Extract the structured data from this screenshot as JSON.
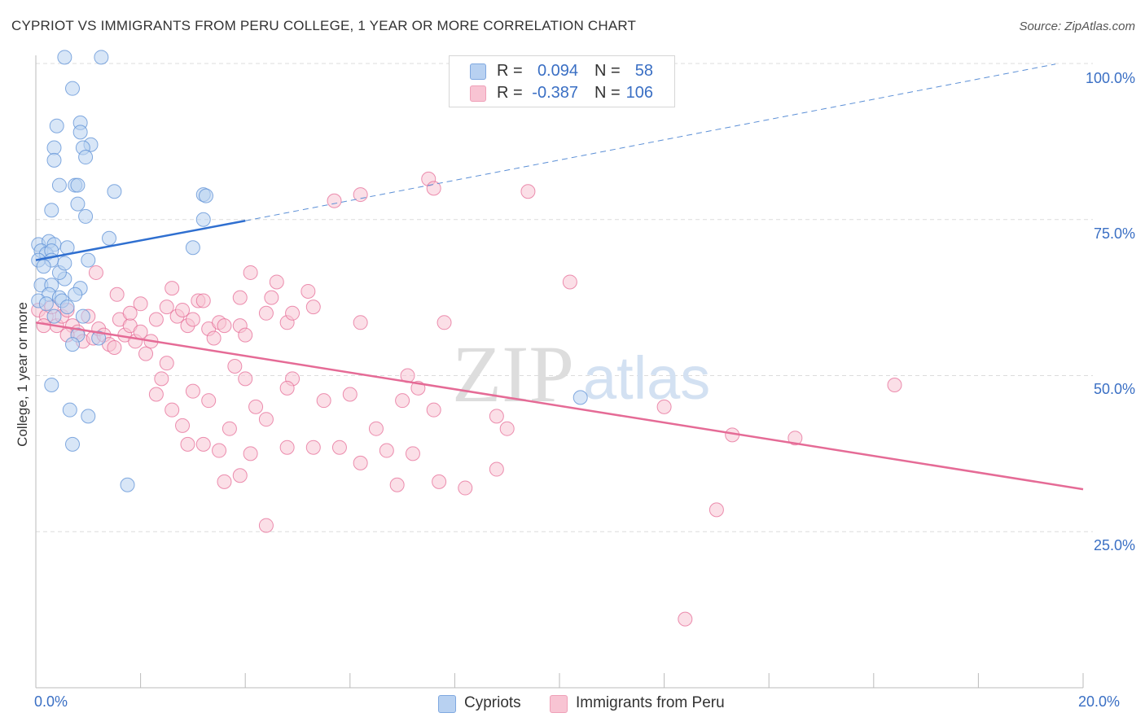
{
  "header": {
    "title": "CYPRIOT VS IMMIGRANTS FROM PERU COLLEGE, 1 YEAR OR MORE CORRELATION CHART",
    "source": "Source: ZipAtlas.com"
  },
  "watermark": {
    "zip": "ZIP",
    "atlas": "atlas"
  },
  "legend": {
    "rows": [
      {
        "swatch_fill": "#b8d1f1",
        "swatch_stroke": "#7fa8e0",
        "r_label": "R =",
        "r_value": "0.094",
        "n_label": "N =",
        "n_value": "58"
      },
      {
        "swatch_fill": "#f8c4d3",
        "swatch_stroke": "#efa0b8",
        "r_label": "R =",
        "r_value": "-0.387",
        "n_label": "N =",
        "n_value": "106"
      }
    ]
  },
  "bottom_legend": {
    "items": [
      {
        "label": "Cypriots",
        "fill": "#b8d1f1",
        "stroke": "#7fa8e0"
      },
      {
        "label": "Immigrants from Peru",
        "fill": "#f8c4d3",
        "stroke": "#efa0b8"
      }
    ]
  },
  "axes": {
    "ylabel": "College, 1 year or more",
    "y_ticks": [
      "100.0%",
      "75.0%",
      "50.0%",
      "25.0%"
    ],
    "x_ticks": [
      "0.0%",
      "20.0%"
    ]
  },
  "chart_data": {
    "type": "scatter",
    "title": "CYPRIOT VS IMMIGRANTS FROM PERU COLLEGE, 1 YEAR OR MORE CORRELATION CHART",
    "xlabel": "",
    "ylabel": "College, 1 year or more",
    "xlim": [
      0,
      20
    ],
    "ylim": [
      0,
      100
    ],
    "y_ticks": [
      25,
      50,
      75,
      100
    ],
    "x_ticks": [
      0,
      20
    ],
    "grid": "horizontal dashed",
    "legend_placement": "top-center",
    "series": [
      {
        "name": "Cypriots",
        "color": "#5b8fd6",
        "fill": "#b8d1f1",
        "R": 0.094,
        "N": 58,
        "trend": {
          "x": [
            0,
            4.0
          ],
          "y": [
            68.5,
            74.8
          ],
          "extended_to": [
            20,
            99.9
          ]
        },
        "points": [
          [
            0.55,
            101
          ],
          [
            1.25,
            101
          ],
          [
            0.7,
            96
          ],
          [
            0.85,
            90.5
          ],
          [
            0.85,
            89
          ],
          [
            0.4,
            90
          ],
          [
            0.35,
            86.5
          ],
          [
            0.35,
            84.5
          ],
          [
            1.05,
            87
          ],
          [
            0.9,
            86.5
          ],
          [
            0.95,
            85
          ],
          [
            0.45,
            80.5
          ],
          [
            0.75,
            80.5
          ],
          [
            0.8,
            80.5
          ],
          [
            1.5,
            79.5
          ],
          [
            3.2,
            79
          ],
          [
            3.25,
            78.8
          ],
          [
            0.3,
            76.5
          ],
          [
            0.8,
            77.5
          ],
          [
            0.95,
            75.5
          ],
          [
            3.2,
            75
          ],
          [
            1.4,
            72
          ],
          [
            0.05,
            71
          ],
          [
            0.25,
            71.5
          ],
          [
            0.35,
            71
          ],
          [
            0.6,
            70.5
          ],
          [
            0.1,
            70
          ],
          [
            0.2,
            69.5
          ],
          [
            0.3,
            70
          ],
          [
            0.05,
            68.5
          ],
          [
            0.3,
            68.5
          ],
          [
            3.0,
            70.5
          ],
          [
            1.0,
            68.5
          ],
          [
            0.1,
            64.5
          ],
          [
            0.3,
            64.5
          ],
          [
            0.55,
            65.5
          ],
          [
            0.85,
            64
          ],
          [
            0.25,
            63
          ],
          [
            0.75,
            63
          ],
          [
            0.45,
            62.5
          ],
          [
            0.5,
            62
          ],
          [
            0.05,
            62
          ],
          [
            0.8,
            56.5
          ],
          [
            1.2,
            56
          ],
          [
            0.7,
            55
          ],
          [
            0.3,
            48.5
          ],
          [
            0.65,
            44.5
          ],
          [
            1.0,
            43.5
          ],
          [
            0.7,
            39
          ],
          [
            1.75,
            32.5
          ],
          [
            10.4,
            46.5
          ],
          [
            0.2,
            61.5
          ],
          [
            0.6,
            61
          ],
          [
            0.15,
            67.5
          ],
          [
            0.45,
            66.5
          ],
          [
            0.9,
            59.5
          ],
          [
            0.35,
            59.5
          ],
          [
            0.55,
            68
          ]
        ]
      },
      {
        "name": "Immigrants from Peru",
        "color": "#e56b96",
        "fill": "#f8c4d3",
        "R": -0.387,
        "N": 106,
        "trend": {
          "x": [
            0,
            20
          ],
          "y": [
            58.5,
            31.8
          ]
        },
        "points": [
          [
            0.05,
            60.5
          ],
          [
            0.2,
            59.5
          ],
          [
            0.3,
            61
          ],
          [
            0.4,
            58
          ],
          [
            0.5,
            59.5
          ],
          [
            0.6,
            60.5
          ],
          [
            0.7,
            58
          ],
          [
            0.8,
            57
          ],
          [
            0.9,
            55.5
          ],
          [
            1.0,
            59.5
          ],
          [
            1.1,
            56
          ],
          [
            1.2,
            57.5
          ],
          [
            1.3,
            56.5
          ],
          [
            1.4,
            55
          ],
          [
            1.5,
            54.5
          ],
          [
            1.6,
            59
          ],
          [
            1.7,
            56.5
          ],
          [
            1.8,
            58
          ],
          [
            1.9,
            55.5
          ],
          [
            2.0,
            57
          ],
          [
            2.1,
            53.5
          ],
          [
            2.2,
            55.5
          ],
          [
            0.6,
            56.5
          ],
          [
            0.15,
            58
          ],
          [
            1.15,
            66.5
          ],
          [
            1.55,
            63
          ],
          [
            1.8,
            60
          ],
          [
            2.0,
            61.5
          ],
          [
            2.3,
            59
          ],
          [
            2.5,
            61
          ],
          [
            2.6,
            64
          ],
          [
            2.7,
            59.5
          ],
          [
            2.8,
            60.5
          ],
          [
            2.9,
            58
          ],
          [
            3.0,
            59
          ],
          [
            3.1,
            62
          ],
          [
            3.2,
            62
          ],
          [
            3.3,
            57.5
          ],
          [
            3.4,
            56
          ],
          [
            3.5,
            58.5
          ],
          [
            3.6,
            58
          ],
          [
            3.9,
            58
          ],
          [
            3.9,
            62.5
          ],
          [
            4.1,
            66.5
          ],
          [
            4.0,
            56.5
          ],
          [
            4.4,
            60
          ],
          [
            4.5,
            62.5
          ],
          [
            4.6,
            65
          ],
          [
            4.8,
            58.5
          ],
          [
            4.9,
            60
          ],
          [
            5.2,
            63.5
          ],
          [
            5.3,
            61
          ],
          [
            6.2,
            79
          ],
          [
            5.7,
            78
          ],
          [
            7.5,
            81.5
          ],
          [
            7.6,
            80
          ],
          [
            9.4,
            79.5
          ],
          [
            10.2,
            65
          ],
          [
            6.2,
            58.5
          ],
          [
            7.8,
            58.5
          ],
          [
            2.3,
            47
          ],
          [
            2.4,
            49.5
          ],
          [
            2.5,
            52
          ],
          [
            3.0,
            47.5
          ],
          [
            3.3,
            46
          ],
          [
            2.6,
            44.5
          ],
          [
            3.8,
            51.5
          ],
          [
            4.0,
            49.5
          ],
          [
            4.9,
            49.5
          ],
          [
            4.8,
            48
          ],
          [
            5.5,
            46
          ],
          [
            4.2,
            45
          ],
          [
            4.4,
            43
          ],
          [
            6.0,
            47
          ],
          [
            6.5,
            41.5
          ],
          [
            7.1,
            50
          ],
          [
            7.3,
            48
          ],
          [
            7.0,
            46
          ],
          [
            7.6,
            44.5
          ],
          [
            8.8,
            43.5
          ],
          [
            8.8,
            35
          ],
          [
            9.0,
            41.5
          ],
          [
            2.8,
            42
          ],
          [
            2.9,
            39
          ],
          [
            3.2,
            39
          ],
          [
            3.5,
            38
          ],
          [
            3.7,
            41.5
          ],
          [
            4.1,
            37.5
          ],
          [
            4.8,
            38.5
          ],
          [
            5.3,
            38.5
          ],
          [
            5.8,
            38.5
          ],
          [
            6.2,
            36
          ],
          [
            6.7,
            38
          ],
          [
            6.9,
            32.5
          ],
          [
            7.2,
            37.5
          ],
          [
            7.7,
            33
          ],
          [
            8.2,
            32
          ],
          [
            3.6,
            33
          ],
          [
            3.9,
            34
          ],
          [
            4.4,
            26
          ],
          [
            12.0,
            45
          ],
          [
            13.3,
            40.5
          ],
          [
            14.5,
            40
          ],
          [
            13.0,
            28.5
          ],
          [
            16.4,
            48.5
          ],
          [
            12.4,
            11
          ]
        ]
      }
    ]
  }
}
